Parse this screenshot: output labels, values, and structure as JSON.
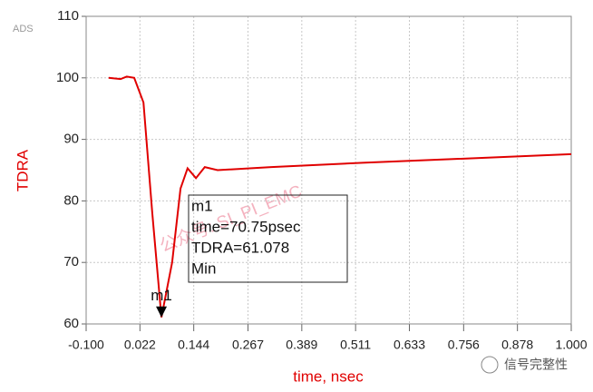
{
  "chart_data": {
    "type": "line",
    "badge": "ADS",
    "xlabel": "time, nsec",
    "ylabel": "TDRA",
    "series": [
      {
        "name": "TDRA",
        "color": "#e00000",
        "x": [
          -0.049,
          -0.022,
          -0.008,
          0.009,
          0.03,
          0.05,
          0.07075,
          0.095,
          0.114,
          0.13,
          0.149,
          0.169,
          0.198,
          0.32,
          0.527,
          0.733,
          1.0
        ],
        "values": [
          100,
          99.8,
          100.2,
          100,
          96,
          78,
          61.078,
          70,
          82,
          85.3,
          83.7,
          85.5,
          85,
          85.5,
          86.2,
          86.8,
          87.6
        ]
      }
    ],
    "xlim": [
      -0.1,
      1.0
    ],
    "xticks": [
      {
        "value": -0.1,
        "label": "-0.100"
      },
      0.022,
      0.144,
      0.267,
      0.389,
      0.511,
      0.633,
      0.756,
      0.878,
      {
        "value": 1.0,
        "label": "1.000"
      }
    ],
    "ylim": [
      60,
      110
    ],
    "yticks": [
      60,
      70,
      80,
      90,
      100,
      110
    ],
    "grid": true,
    "marker": {
      "name": "m1",
      "x": 0.07075,
      "y": 61.078,
      "lines": [
        "m1",
        "time=70.75psec",
        "TDRA=61.078",
        "Min"
      ]
    },
    "watermark": "公众号: SI_PI_EMC",
    "footer": "信号完整性"
  }
}
